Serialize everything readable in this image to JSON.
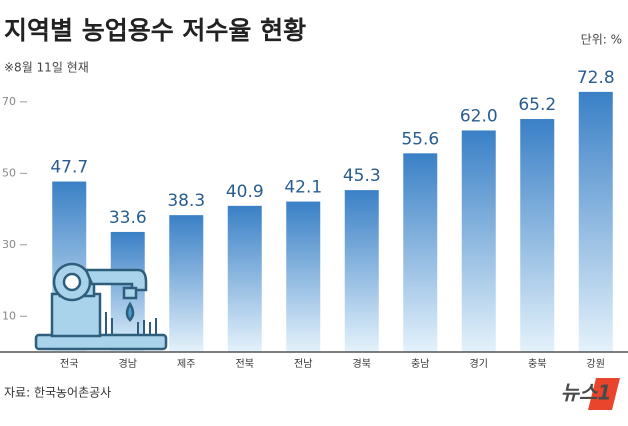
{
  "chart_data": {
    "type": "bar",
    "title": "지역별 농업용수 저수율 현황",
    "unit": "단위: %",
    "subtitle": "※8월 11일 현재",
    "categories": [
      "전국",
      "경남",
      "제주",
      "전북",
      "전남",
      "경북",
      "충남",
      "경기",
      "충북",
      "강원"
    ],
    "values": [
      47.7,
      33.6,
      38.3,
      40.9,
      42.1,
      45.3,
      55.6,
      62.0,
      65.2,
      72.8
    ],
    "value_labels": [
      "47.7",
      "33.6",
      "38.3",
      "40.9",
      "42.1",
      "45.3",
      "55.6",
      "62.0",
      "65.2",
      "72.8"
    ],
    "color": "#3a80c6",
    "ylim": [
      0,
      75
    ],
    "yticks": [
      10,
      30,
      50,
      70
    ],
    "source": "자료: 한국농어촌공사",
    "logo": "뉴스1"
  }
}
